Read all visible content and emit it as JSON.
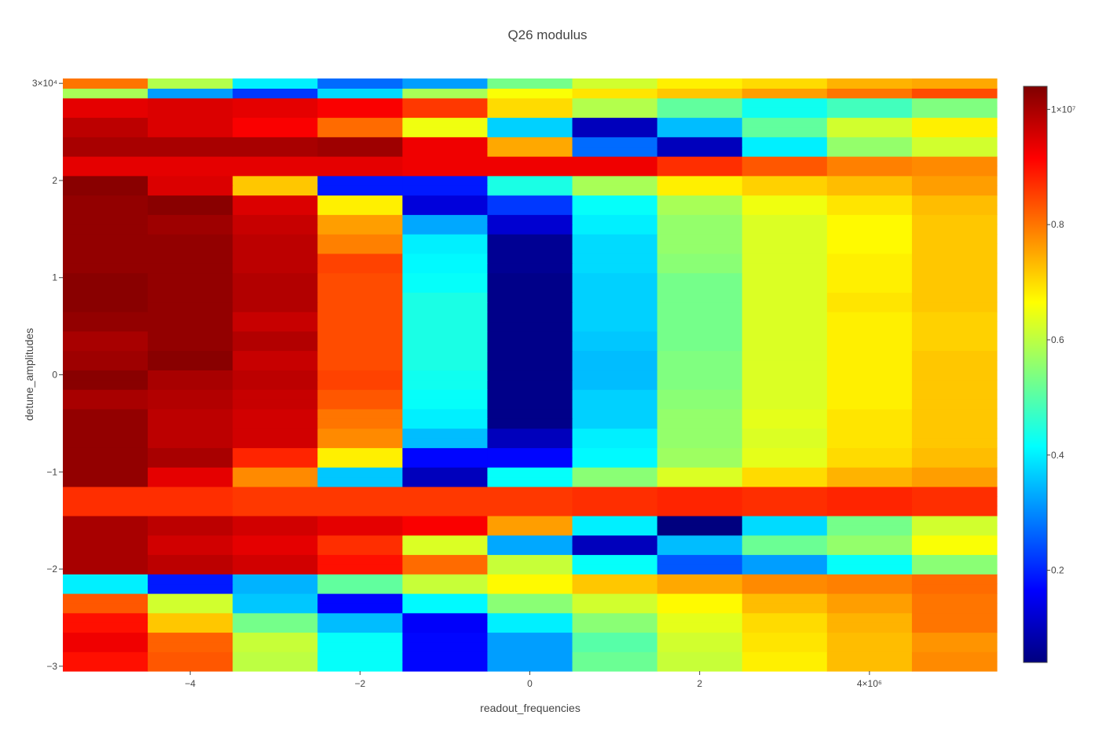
{
  "chart_data": {
    "type": "heatmap",
    "title": "Q26 modulus",
    "xlabel": "readout_frequencies",
    "ylabel": "detune_amplitudes",
    "x_ticks": [
      {
        "value": -4000000,
        "label": "−4"
      },
      {
        "value": -2000000,
        "label": "−2"
      },
      {
        "value": 0,
        "label": "0"
      },
      {
        "value": 2000000,
        "label": "2"
      },
      {
        "value": 4000000,
        "label": "4×10⁶"
      }
    ],
    "y_ticks": [
      {
        "value": -30000,
        "label": "−3"
      },
      {
        "value": -20000,
        "label": "−2"
      },
      {
        "value": -10000,
        "label": "−1"
      },
      {
        "value": 0,
        "label": "0"
      },
      {
        "value": 10000,
        "label": "1"
      },
      {
        "value": 20000,
        "label": "2"
      },
      {
        "value": 30000,
        "label": "3×10⁴"
      }
    ],
    "colorbar_ticks": [
      {
        "value": 2000000,
        "label": "0.2"
      },
      {
        "value": 4000000,
        "label": "0.4"
      },
      {
        "value": 6000000,
        "label": "0.6"
      },
      {
        "value": 8000000,
        "label": "0.8"
      },
      {
        "value": 10000000,
        "label": "1×10⁷"
      }
    ],
    "x": [
      -5000000,
      -4000000,
      -3000000,
      -2000000,
      -1000000,
      0,
      1000000,
      2000000,
      3000000,
      4000000,
      5000000
    ],
    "y": [
      -30000,
      -29000,
      -28000,
      -27000,
      -26000,
      -25000,
      -24000,
      -23000,
      -22000,
      -21000,
      -20000,
      -19000,
      -18000,
      -17000,
      -16000,
      -15000,
      -14000,
      -13000,
      -12000,
      -11000,
      -10000,
      -9000,
      -8000,
      -7000,
      -6000,
      -5000,
      -4000,
      -3000,
      -2000,
      -1000,
      0,
      1000,
      2000,
      3000,
      4000,
      5000,
      6000,
      7000,
      8000,
      9000,
      10000,
      11000,
      12000,
      13000,
      14000,
      15000,
      16000,
      17000,
      18000,
      19000,
      20000,
      21000,
      22000,
      23000,
      24000,
      25000,
      26000,
      27000,
      28000,
      29000,
      30000
    ],
    "z_range": [
      400000,
      10400000
    ],
    "colorscale": "Jet",
    "row_profiles": [
      {
        "y_from": -30000,
        "y_to": -29000,
        "z": [
          9000000,
          8300000,
          6000000,
          4200000,
          1700000,
          3200000,
          5200000,
          6100000,
          6800000,
          7300000,
          7800000
        ]
      },
      {
        "y_from": -28000,
        "y_to": -27000,
        "z": [
          9300000,
          8200000,
          6100000,
          4200000,
          1700000,
          3200000,
          5000000,
          6200000,
          6900000,
          7300000,
          7700000
        ]
      },
      {
        "y_from": -26000,
        "y_to": -25000,
        "z": [
          9000000,
          7200000,
          5300000,
          3500000,
          1600000,
          4000000,
          5500000,
          6400000,
          7000000,
          7400000,
          8000000
        ]
      },
      {
        "y_from": -24000,
        "y_to": -23000,
        "z": [
          8300000,
          6200000,
          3600000,
          1700000,
          4100000,
          5500000,
          6200000,
          6700000,
          7300000,
          7600000,
          8000000
        ]
      },
      {
        "y_from": -22000,
        "y_to": -21000,
        "z": [
          4000000,
          1900000,
          3400000,
          5100000,
          6100000,
          6700000,
          7200000,
          7500000,
          7800000,
          7900000,
          8100000
        ]
      },
      {
        "y_from": -20000,
        "y_to": -19000,
        "z": [
          10000000,
          9800000,
          9600000,
          9000000,
          8100000,
          6100000,
          4200000,
          2500000,
          3200000,
          4200000,
          5500000
        ]
      },
      {
        "y_from": -18000,
        "y_to": -17000,
        "z": [
          10000000,
          9600000,
          9400000,
          8700000,
          6300000,
          3300000,
          1000000,
          3500000,
          5200000,
          5600000,
          6600000
        ]
      },
      {
        "y_from": -16000,
        "y_to": -15000,
        "z": [
          10000000,
          9800000,
          9600000,
          9400000,
          9200000,
          7600000,
          4000000,
          400000,
          3800000,
          5300000,
          6200000
        ]
      },
      {
        "y_from": -14000,
        "y_to": -12000,
        "z": [
          8700000,
          8700000,
          8600000,
          8600000,
          8600000,
          8600000,
          8700000,
          8800000,
          8700000,
          8800000,
          8700000
        ]
      },
      {
        "y_from": -11000,
        "y_to": -10000,
        "z": [
          10200000,
          9400000,
          7800000,
          3600000,
          1000000,
          4200000,
          5500000,
          6300000,
          7000000,
          7400000,
          7600000
        ]
      },
      {
        "y_from": -9000,
        "y_to": -8000,
        "z": [
          10200000,
          10000000,
          8800000,
          6800000,
          1700000,
          1700000,
          4100000,
          5700000,
          6400000,
          7000000,
          7300000
        ]
      },
      {
        "y_from": -7000,
        "y_to": -6000,
        "z": [
          10200000,
          9800000,
          9600000,
          7800000,
          3500000,
          1000000,
          4000000,
          5600000,
          6300000,
          6900000,
          7200000
        ]
      },
      {
        "y_from": -5000,
        "y_to": -4000,
        "z": [
          10200000,
          9800000,
          9600000,
          8000000,
          4000000,
          500000,
          3700000,
          5600000,
          6400000,
          6900000,
          7200000
        ]
      },
      {
        "y_from": -3000,
        "y_to": -2000,
        "z": [
          10000000,
          9900000,
          9700000,
          8300000,
          4200000,
          500000,
          3700000,
          5500000,
          6300000,
          6800000,
          7200000
        ]
      },
      {
        "y_from": -1000,
        "y_to": 0,
        "z": [
          10300000,
          10000000,
          9800000,
          8500000,
          4300000,
          500000,
          3500000,
          5400000,
          6300000,
          6800000,
          7200000
        ]
      },
      {
        "y_from": 1000,
        "y_to": 2000,
        "z": [
          10100000,
          10300000,
          9700000,
          8400000,
          4400000,
          500000,
          3500000,
          5400000,
          6300000,
          6800000,
          7200000
        ]
      },
      {
        "y_from": 3000,
        "y_to": 4000,
        "z": [
          10000000,
          10200000,
          9900000,
          8400000,
          4400000,
          500000,
          3600000,
          5300000,
          6300000,
          6800000,
          7100000
        ]
      },
      {
        "y_from": 5000,
        "y_to": 6000,
        "z": [
          10200000,
          10200000,
          9700000,
          8400000,
          4400000,
          500000,
          3700000,
          5300000,
          6300000,
          6800000,
          7100000
        ]
      },
      {
        "y_from": 7000,
        "y_to": 8000,
        "z": [
          10300000,
          10200000,
          9900000,
          8400000,
          4400000,
          500000,
          3700000,
          5300000,
          6300000,
          6900000,
          7200000
        ]
      },
      {
        "y_from": 9000,
        "y_to": 10000,
        "z": [
          10300000,
          10200000,
          9900000,
          8400000,
          4200000,
          500000,
          3700000,
          5300000,
          6300000,
          6800000,
          7200000
        ]
      },
      {
        "y_from": 11000,
        "y_to": 12000,
        "z": [
          10200000,
          10200000,
          9800000,
          8500000,
          4100000,
          600000,
          3800000,
          5500000,
          6300000,
          6800000,
          7200000
        ]
      },
      {
        "y_from": 13000,
        "y_to": 14000,
        "z": [
          10200000,
          10200000,
          9800000,
          7900000,
          4000000,
          600000,
          3800000,
          5600000,
          6300000,
          6700000,
          7200000
        ]
      },
      {
        "y_from": 15000,
        "y_to": 16000,
        "z": [
          10200000,
          10100000,
          9700000,
          7600000,
          3300000,
          1200000,
          4000000,
          5600000,
          6300000,
          6700000,
          7200000
        ]
      },
      {
        "y_from": 17000,
        "y_to": 18000,
        "z": [
          10200000,
          10300000,
          9500000,
          6800000,
          1300000,
          2200000,
          4200000,
          5800000,
          6500000,
          6900000,
          7300000
        ]
      },
      {
        "y_from": 19000,
        "y_to": 20000,
        "z": [
          10300000,
          9500000,
          7200000,
          1900000,
          1900000,
          4400000,
          5800000,
          6800000,
          7100000,
          7300000,
          7600000
        ]
      },
      {
        "y_from": 21000,
        "y_to": 22000,
        "z": [
          9400000,
          9400000,
          9400000,
          9400000,
          9300000,
          9300000,
          9300000,
          8700000,
          8300000,
          7900000,
          7800000
        ]
      },
      {
        "y_from": 23000,
        "y_to": 24000,
        "z": [
          10000000,
          10000000,
          10000000,
          10100000,
          9300000,
          7500000,
          2700000,
          1000000,
          4000000,
          5600000,
          6200000
        ]
      },
      {
        "y_from": 25000,
        "y_to": 26000,
        "z": [
          9800000,
          9500000,
          9200000,
          8100000,
          6500000,
          3700000,
          1000000,
          3500000,
          5100000,
          6200000,
          6800000
        ]
      },
      {
        "y_from": 27000,
        "y_to": 28000,
        "z": [
          9400000,
          9500000,
          9400000,
          9200000,
          8600000,
          7000000,
          5900000,
          5100000,
          4300000,
          4800000,
          5400000
        ]
      },
      {
        "y_from": 29000,
        "y_to": 29000,
        "z": [
          5800000,
          3200000,
          2200000,
          3800000,
          5800000,
          6600000,
          6900000,
          7200000,
          7600000,
          8000000,
          8400000
        ]
      },
      {
        "y_from": 30000,
        "y_to": 30000,
        "z": [
          8000000,
          5900000,
          4000000,
          2700000,
          3200000,
          5300000,
          6200000,
          6800000,
          7000000,
          7400000,
          7500000
        ]
      }
    ]
  }
}
